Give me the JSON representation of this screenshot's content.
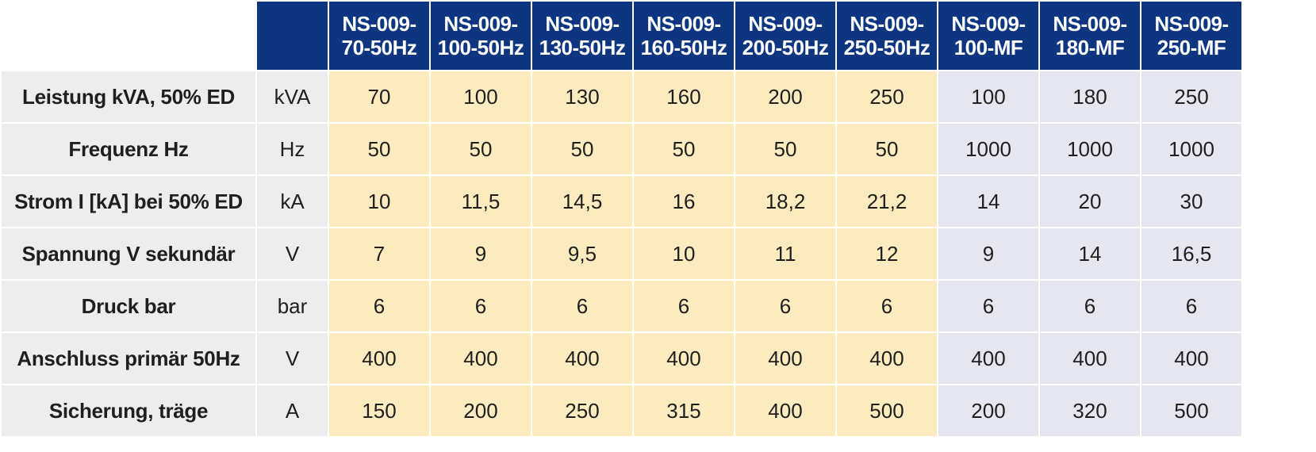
{
  "columns": [
    "NS-009-70-50Hz",
    "NS-009-100-50Hz",
    "NS-009-130-50Hz",
    "NS-009-160-50Hz",
    "NS-009-200-50Hz",
    "NS-009-250-50Hz",
    "NS-009-100-MF",
    "NS-009-180-MF",
    "NS-009-250-MF"
  ],
  "column_header_lines": [
    [
      "NS-009-",
      "70-50Hz"
    ],
    [
      "NS-009-",
      "100-50Hz"
    ],
    [
      "NS-009-",
      "130-50Hz"
    ],
    [
      "NS-009-",
      "160-50Hz"
    ],
    [
      "NS-009-",
      "200-50Hz"
    ],
    [
      "NS-009-",
      "250-50Hz"
    ],
    [
      "NS-009-",
      "100-MF"
    ],
    [
      "NS-009-",
      "180-MF"
    ],
    [
      "NS-009-",
      "250-MF"
    ]
  ],
  "rows": [
    {
      "label": "Leistung kVA, 50% ED",
      "unit": "kVA",
      "values": [
        "70",
        "100",
        "130",
        "160",
        "200",
        "250",
        "100",
        "180",
        "250"
      ]
    },
    {
      "label": "Frequenz Hz",
      "unit": "Hz",
      "values": [
        "50",
        "50",
        "50",
        "50",
        "50",
        "50",
        "1000",
        "1000",
        "1000"
      ]
    },
    {
      "label": "Strom I [kA] bei 50% ED",
      "unit": "kA",
      "values": [
        "10",
        "11,5",
        "14,5",
        "16",
        "18,2",
        "21,2",
        "14",
        "20",
        "30"
      ]
    },
    {
      "label": "Spannung V sekundär",
      "unit": "V",
      "values": [
        "7",
        "9",
        "9,5",
        "10",
        "11",
        "12",
        "9",
        "14",
        "16,5"
      ]
    },
    {
      "label": "Druck bar",
      "unit": "bar",
      "values": [
        "6",
        "6",
        "6",
        "6",
        "6",
        "6",
        "6",
        "6",
        "6"
      ]
    },
    {
      "label": "Anschluss primär 50Hz",
      "unit": "V",
      "values": [
        "400",
        "400",
        "400",
        "400",
        "400",
        "400",
        "400",
        "400",
        "400"
      ]
    },
    {
      "label": "Sicherung, träge",
      "unit": "A",
      "values": [
        "150",
        "200",
        "250",
        "315",
        "400",
        "500",
        "200",
        "320",
        "500"
      ]
    }
  ],
  "colors": {
    "header_bg": "#0e3580",
    "label_bg": "#ededed",
    "standard_bg": "#fcebbe",
    "mf_bg": "#e6e6f1"
  }
}
